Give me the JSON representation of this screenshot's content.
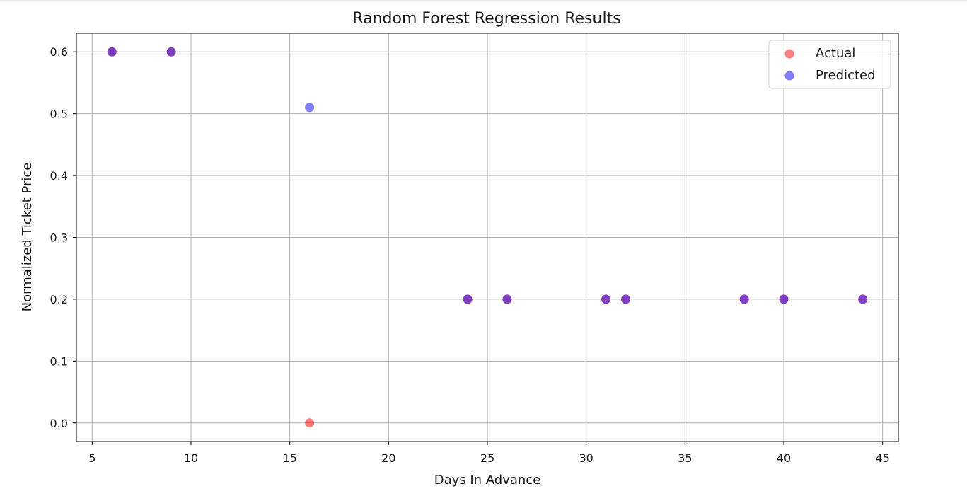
{
  "chart_data": {
    "type": "scatter",
    "title": "Random Forest Regression Results",
    "xlabel": "Days In Advance",
    "ylabel": "Normalized Ticket Price",
    "xlim": [
      4.2,
      45.8
    ],
    "ylim": [
      -0.03,
      0.63
    ],
    "xticks": [
      5,
      10,
      15,
      20,
      25,
      30,
      35,
      40,
      45
    ],
    "xtick_labels": [
      "5",
      "10",
      "15",
      "20",
      "25",
      "30",
      "35",
      "40",
      "45"
    ],
    "yticks": [
      0.0,
      0.1,
      0.2,
      0.3,
      0.4,
      0.5,
      0.6
    ],
    "ytick_labels": [
      "0.0",
      "0.1",
      "0.2",
      "0.3",
      "0.4",
      "0.5",
      "0.6"
    ],
    "grid": true,
    "legend_position": "top-right",
    "series": [
      {
        "name": "Actual",
        "color": "#ff0000",
        "alpha": 0.5,
        "points": [
          {
            "x": 6,
            "y": 0.6
          },
          {
            "x": 9,
            "y": 0.6
          },
          {
            "x": 16,
            "y": 0.0
          },
          {
            "x": 24,
            "y": 0.2
          },
          {
            "x": 26,
            "y": 0.2
          },
          {
            "x": 31,
            "y": 0.2
          },
          {
            "x": 32,
            "y": 0.2
          },
          {
            "x": 38,
            "y": 0.2
          },
          {
            "x": 40,
            "y": 0.2
          },
          {
            "x": 44,
            "y": 0.2
          }
        ]
      },
      {
        "name": "Predicted",
        "color": "#0000ff",
        "alpha": 0.5,
        "points": [
          {
            "x": 6,
            "y": 0.6
          },
          {
            "x": 9,
            "y": 0.6
          },
          {
            "x": 16,
            "y": 0.51
          },
          {
            "x": 24,
            "y": 0.2
          },
          {
            "x": 26,
            "y": 0.2
          },
          {
            "x": 31,
            "y": 0.2
          },
          {
            "x": 32,
            "y": 0.2
          },
          {
            "x": 38,
            "y": 0.2
          },
          {
            "x": 40,
            "y": 0.2
          },
          {
            "x": 44,
            "y": 0.2
          }
        ]
      }
    ]
  }
}
